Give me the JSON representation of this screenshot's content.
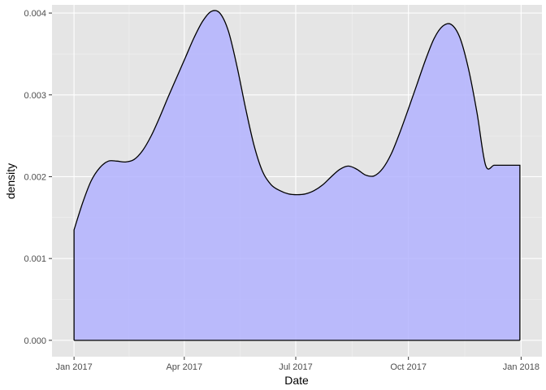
{
  "chart_data": {
    "type": "area",
    "xlabel": "Date",
    "ylabel": "density",
    "xlim": [
      "2016-12-14",
      "2018-01-18"
    ],
    "ylim": [
      -0.0002,
      0.0041
    ],
    "x_ticks": [
      {
        "date": "2017-01-01",
        "label": "Jan 2017"
      },
      {
        "date": "2017-04-01",
        "label": "Apr 2017"
      },
      {
        "date": "2017-07-01",
        "label": "Jul 2017"
      },
      {
        "date": "2017-10-01",
        "label": "Oct 2017"
      },
      {
        "date": "2018-01-01",
        "label": "Jan 2018"
      }
    ],
    "y_ticks": [
      {
        "value": 0.0,
        "label": "0.000"
      },
      {
        "value": 0.001,
        "label": "0.001"
      },
      {
        "value": 0.002,
        "label": "0.002"
      },
      {
        "value": 0.003,
        "label": "0.003"
      },
      {
        "value": 0.004,
        "label": "0.004"
      }
    ],
    "series": [
      {
        "x": [
          "2017-01-01",
          "2017-01-08",
          "2017-01-15",
          "2017-01-22",
          "2017-01-29",
          "2017-02-05",
          "2017-02-12",
          "2017-02-19",
          "2017-02-26",
          "2017-03-05",
          "2017-03-12",
          "2017-03-19",
          "2017-03-26",
          "2017-04-02",
          "2017-04-09",
          "2017-04-16",
          "2017-04-23",
          "2017-04-30",
          "2017-05-07",
          "2017-05-14",
          "2017-05-21",
          "2017-05-28",
          "2017-06-04",
          "2017-06-11",
          "2017-06-18",
          "2017-06-25",
          "2017-07-02",
          "2017-07-09",
          "2017-07-16",
          "2017-07-23",
          "2017-07-30",
          "2017-08-06",
          "2017-08-13",
          "2017-08-20",
          "2017-08-27",
          "2017-09-03",
          "2017-09-10",
          "2017-09-17",
          "2017-09-24",
          "2017-10-01",
          "2017-10-08",
          "2017-10-15",
          "2017-10-22",
          "2017-10-29",
          "2017-11-05",
          "2017-11-12",
          "2017-11-19",
          "2017-11-26",
          "2017-12-03",
          "2017-12-10",
          "2017-12-17",
          "2017-12-24",
          "2017-12-31"
        ],
        "y": [
          0.00135,
          0.00168,
          0.00195,
          0.00211,
          0.00219,
          0.00219,
          0.00218,
          0.00221,
          0.00232,
          0.0025,
          0.00273,
          0.00298,
          0.00322,
          0.00346,
          0.0037,
          0.0039,
          0.00402,
          0.004,
          0.00378,
          0.00335,
          0.00284,
          0.00238,
          0.00206,
          0.0019,
          0.00183,
          0.00179,
          0.00178,
          0.00179,
          0.00183,
          0.0019,
          0.002,
          0.00209,
          0.00213,
          0.00209,
          0.00202,
          0.00201,
          0.0021,
          0.00228,
          0.00254,
          0.00283,
          0.00313,
          0.00343,
          0.00369,
          0.00384,
          0.00386,
          0.0037,
          0.00332,
          0.00278,
          0.00214,
          0.00214,
          0.00214,
          0.00214,
          0.00214
        ]
      }
    ],
    "colors": {
      "panel": "#e5e5e5",
      "grid_major": "#ffffff",
      "fill": "#b8b8ec",
      "line": "#000000"
    },
    "grid": true,
    "legend": "none"
  }
}
